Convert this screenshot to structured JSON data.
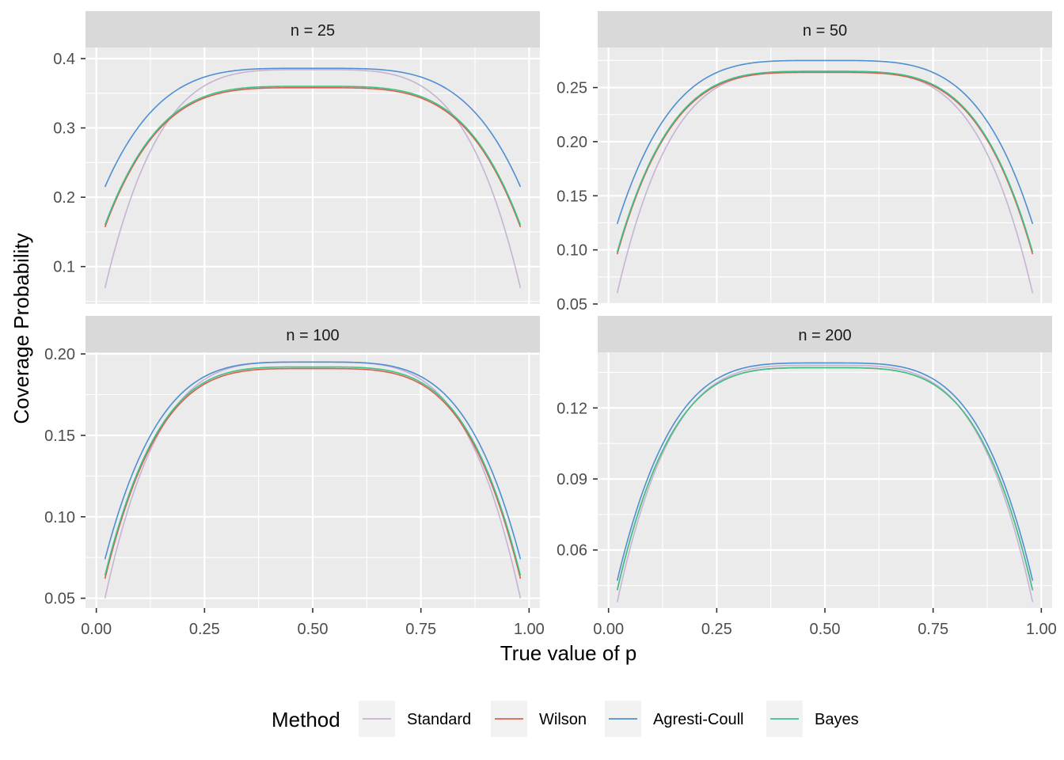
{
  "chart_data": {
    "type": "line",
    "xlabel": "True value of p",
    "ylabel": "Coverage Probability",
    "legend": {
      "title": "Method",
      "position": "bottom",
      "entries": [
        "Standard",
        "Wilson",
        "Agresti-Coull",
        "Bayes"
      ]
    },
    "colors": {
      "Standard": "#c7b3d3",
      "Wilson": "#d95f4c",
      "Agresti-Coull": "#4e8fd1",
      "Bayes": "#3cc38a"
    },
    "x_ticks": [
      0.0,
      0.25,
      0.5,
      0.75,
      1.0
    ],
    "x_tick_labels": [
      "0.00",
      "0.25",
      "0.50",
      "0.75",
      "1.00"
    ],
    "xlim": [
      -0.025,
      1.025
    ],
    "x_range": [
      0.02,
      0.98
    ],
    "panels": [
      {
        "strip": "n = 25",
        "ylim": [
          0.046,
          0.416
        ],
        "y_ticks": [
          0.1,
          0.2,
          0.3,
          0.4
        ],
        "y_tick_labels": [
          "0.1",
          "0.2",
          "0.3",
          "0.4"
        ],
        "series": [
          {
            "name": "Standard",
            "at_p_0.02": 0.069,
            "at_p_0.5": 0.384
          },
          {
            "name": "Wilson",
            "at_p_0.02": 0.157,
            "at_p_0.5": 0.358
          },
          {
            "name": "Agresti-Coull",
            "at_p_0.02": 0.215,
            "at_p_0.5": 0.386
          },
          {
            "name": "Bayes",
            "at_p_0.02": 0.16,
            "at_p_0.5": 0.36
          }
        ]
      },
      {
        "strip": "n = 50",
        "ylim": [
          0.05,
          0.287
        ],
        "y_ticks": [
          0.05,
          0.1,
          0.15,
          0.2,
          0.25
        ],
        "y_tick_labels": [
          "0.05",
          "0.10",
          "0.15",
          "0.20",
          "0.25"
        ],
        "series": [
          {
            "name": "Standard",
            "at_p_0.02": 0.06,
            "at_p_0.5": 0.265
          },
          {
            "name": "Wilson",
            "at_p_0.02": 0.096,
            "at_p_0.5": 0.264
          },
          {
            "name": "Agresti-Coull",
            "at_p_0.02": 0.124,
            "at_p_0.5": 0.275
          },
          {
            "name": "Bayes",
            "at_p_0.02": 0.098,
            "at_p_0.5": 0.265
          }
        ]
      },
      {
        "strip": "n = 100",
        "ylim": [
          0.044,
          0.201
        ],
        "y_ticks": [
          0.05,
          0.1,
          0.15,
          0.2
        ],
        "y_tick_labels": [
          "0.05",
          "0.10",
          "0.15",
          "0.20"
        ],
        "series": [
          {
            "name": "Standard",
            "at_p_0.02": 0.05,
            "at_p_0.5": 0.195
          },
          {
            "name": "Wilson",
            "at_p_0.02": 0.062,
            "at_p_0.5": 0.191
          },
          {
            "name": "Agresti-Coull",
            "at_p_0.02": 0.074,
            "at_p_0.5": 0.195
          },
          {
            "name": "Bayes",
            "at_p_0.02": 0.064,
            "at_p_0.5": 0.192
          }
        ]
      },
      {
        "strip": "n = 200",
        "ylim": [
          0.0355,
          0.1435
        ],
        "y_ticks": [
          0.06,
          0.09,
          0.12
        ],
        "y_tick_labels": [
          "0.06",
          "0.09",
          "0.12"
        ],
        "series": [
          {
            "name": "Standard",
            "at_p_0.02": 0.038,
            "at_p_0.5": 0.138
          },
          {
            "name": "Wilson",
            "at_p_0.02": 0.043,
            "at_p_0.5": 0.137
          },
          {
            "name": "Agresti-Coull",
            "at_p_0.02": 0.047,
            "at_p_0.5": 0.139
          },
          {
            "name": "Bayes",
            "at_p_0.02": 0.043,
            "at_p_0.5": 0.137
          }
        ]
      }
    ]
  }
}
